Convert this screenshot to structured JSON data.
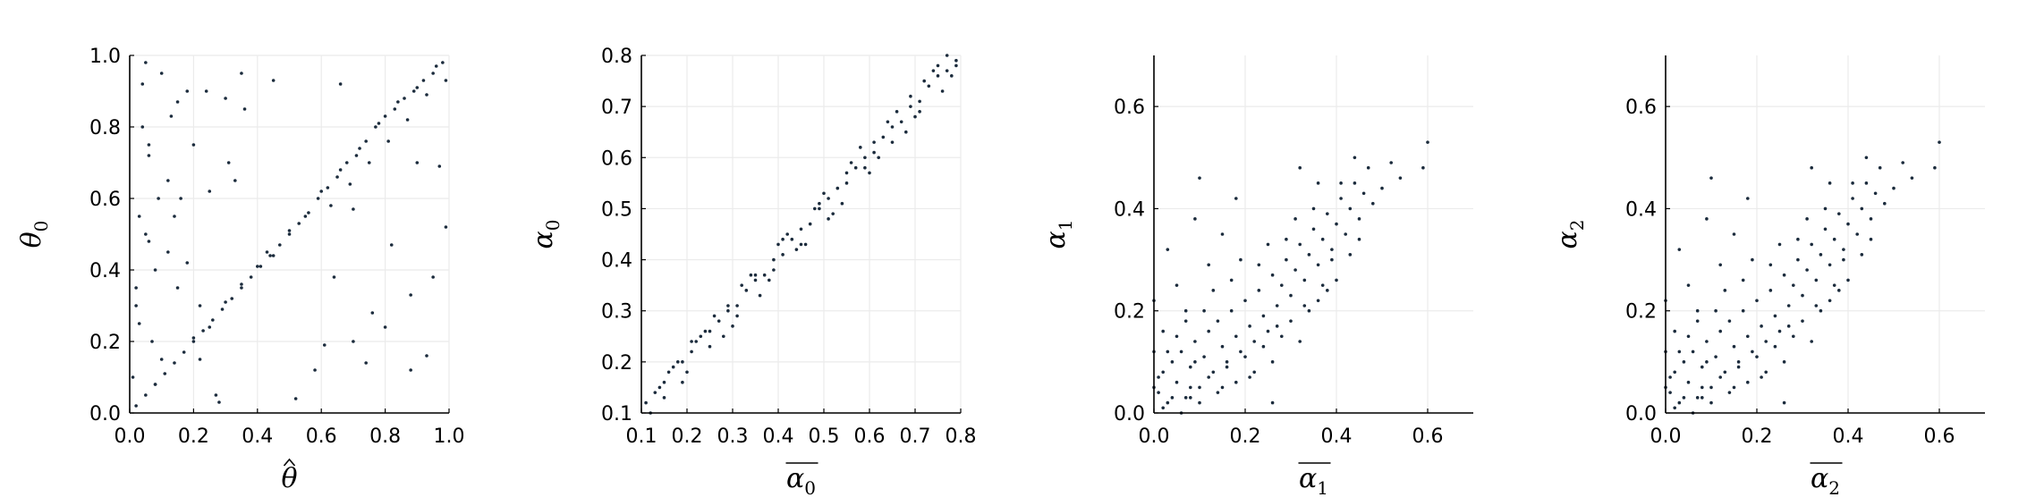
{
  "figure": {
    "grid": true,
    "point_color": "#1b2b3c",
    "grid_color": "#ebebeb",
    "axis_color": "#000000"
  },
  "chart_data": [
    {
      "type": "scatter",
      "id": "panel-1",
      "xlabel": "θ̂",
      "xlabel_main": "θ",
      "xlabel_accent": "hat",
      "xlabel_sub": "",
      "ylabel": "θ0",
      "ylabel_main": "θ",
      "ylabel_sub": "0",
      "xlim": [
        0.0,
        1.0
      ],
      "ylim": [
        0.0,
        1.0
      ],
      "xticks": [
        "0.0",
        "0.2",
        "0.4",
        "0.6",
        "0.8",
        "1.0"
      ],
      "yticks": [
        "0.0",
        "0.2",
        "0.4",
        "0.6",
        "0.8",
        "1.0"
      ],
      "xtick_values": [
        0.0,
        0.2,
        0.4,
        0.6,
        0.8,
        1.0
      ],
      "ytick_values": [
        0.0,
        0.2,
        0.4,
        0.6,
        0.8,
        1.0
      ],
      "series": [
        {
          "x": [
            0.02,
            0.05,
            0.08,
            0.11,
            0.14,
            0.17,
            0.2,
            0.23,
            0.26,
            0.29,
            0.32,
            0.35,
            0.38,
            0.41,
            0.44,
            0.47,
            0.5,
            0.53,
            0.56,
            0.59,
            0.62,
            0.65,
            0.68,
            0.71,
            0.74,
            0.77,
            0.8,
            0.83,
            0.86,
            0.89,
            0.92,
            0.95,
            0.98,
            0.2,
            0.25,
            0.3,
            0.35,
            0.4,
            0.45,
            0.5,
            0.55,
            0.6,
            0.63,
            0.66,
            0.69,
            0.72,
            0.75,
            0.78,
            0.81,
            0.84,
            0.87,
            0.9,
            0.93,
            0.96,
            0.99,
            0.01,
            0.02,
            0.03,
            0.04,
            0.06,
            0.07,
            0.09,
            0.12,
            0.15,
            0.18,
            0.22,
            0.27,
            0.31,
            0.36,
            0.58,
            0.64,
            0.7,
            0.76,
            0.82,
            0.88,
            0.93,
            0.97,
            0.1,
            0.05,
            0.15,
            0.03,
            0.08,
            0.12,
            0.2,
            0.25,
            0.35,
            0.05,
            0.1,
            0.06,
            0.18,
            0.22,
            0.14,
            0.04,
            0.3,
            0.45,
            0.02,
            0.08,
            0.28,
            0.13,
            0.61,
            0.74,
            0.8,
            0.88,
            0.95,
            0.99,
            0.52,
            0.66,
            0.7,
            0.9,
            0.33,
            0.16,
            0.06,
            0.24,
            0.43
          ],
          "y": [
            0.02,
            0.05,
            0.08,
            0.11,
            0.14,
            0.17,
            0.2,
            0.23,
            0.26,
            0.29,
            0.32,
            0.35,
            0.38,
            0.41,
            0.44,
            0.47,
            0.5,
            0.53,
            0.56,
            0.6,
            0.63,
            0.66,
            0.7,
            0.72,
            0.76,
            0.8,
            0.83,
            0.85,
            0.88,
            0.9,
            0.93,
            0.95,
            0.98,
            0.21,
            0.24,
            0.31,
            0.36,
            0.41,
            0.44,
            0.51,
            0.55,
            0.62,
            0.58,
            0.68,
            0.64,
            0.74,
            0.7,
            0.81,
            0.76,
            0.87,
            0.82,
            0.91,
            0.89,
            0.97,
            0.93,
            0.1,
            0.3,
            0.55,
            0.8,
            0.75,
            0.2,
            0.6,
            0.45,
            0.35,
            0.9,
            0.15,
            0.05,
            0.7,
            0.85,
            0.12,
            0.38,
            0.2,
            0.28,
            0.47,
            0.33,
            0.16,
            0.69,
            0.95,
            0.98,
            0.87,
            0.25,
            0.4,
            0.65,
            0.75,
            0.62,
            0.95,
            0.5,
            0.15,
            0.72,
            0.42,
            0.3,
            0.55,
            0.92,
            0.88,
            0.93,
            0.35,
            0.08,
            0.03,
            0.83,
            0.19,
            0.14,
            0.24,
            0.12,
            0.38,
            0.52,
            0.04,
            0.92,
            0.57,
            0.7,
            0.65,
            0.6,
            0.48,
            0.9,
            0.45
          ]
        }
      ]
    },
    {
      "type": "scatter",
      "id": "panel-2",
      "xlabel": "α0 (overlined)",
      "xlabel_main": "α",
      "xlabel_sub": "0",
      "xlabel_accent": "bar",
      "ylabel": "α0",
      "ylabel_main": "α",
      "ylabel_sub": "0",
      "xlim": [
        0.1,
        0.8
      ],
      "ylim": [
        0.1,
        0.8
      ],
      "xticks": [
        "0.1",
        "0.2",
        "0.3",
        "0.4",
        "0.5",
        "0.6",
        "0.7",
        "0.8"
      ],
      "yticks": [
        "0.1",
        "0.2",
        "0.3",
        "0.4",
        "0.5",
        "0.6",
        "0.7",
        "0.8"
      ],
      "xtick_values": [
        0.1,
        0.2,
        0.3,
        0.4,
        0.5,
        0.6,
        0.7,
        0.8
      ],
      "ytick_values": [
        0.1,
        0.2,
        0.3,
        0.4,
        0.5,
        0.6,
        0.7,
        0.8
      ],
      "series": [
        {
          "x": [
            0.11,
            0.13,
            0.15,
            0.17,
            0.19,
            0.21,
            0.23,
            0.25,
            0.27,
            0.29,
            0.31,
            0.33,
            0.35,
            0.37,
            0.39,
            0.41,
            0.43,
            0.45,
            0.47,
            0.49,
            0.51,
            0.53,
            0.55,
            0.57,
            0.59,
            0.61,
            0.63,
            0.65,
            0.67,
            0.69,
            0.71,
            0.73,
            0.75,
            0.77,
            0.79,
            0.12,
            0.16,
            0.2,
            0.24,
            0.28,
            0.32,
            0.36,
            0.4,
            0.44,
            0.48,
            0.52,
            0.56,
            0.6,
            0.64,
            0.68,
            0.72,
            0.76,
            0.14,
            0.18,
            0.22,
            0.26,
            0.3,
            0.34,
            0.38,
            0.42,
            0.46,
            0.5,
            0.54,
            0.58,
            0.62,
            0.66,
            0.7,
            0.74,
            0.78,
            0.15,
            0.25,
            0.35,
            0.45,
            0.55,
            0.65,
            0.75,
            0.19,
            0.29,
            0.39,
            0.49,
            0.59,
            0.69,
            0.79,
            0.21,
            0.31,
            0.41,
            0.51,
            0.61,
            0.71,
            0.77
          ],
          "y": [
            0.12,
            0.14,
            0.16,
            0.19,
            0.2,
            0.22,
            0.25,
            0.26,
            0.28,
            0.3,
            0.31,
            0.34,
            0.36,
            0.37,
            0.4,
            0.41,
            0.44,
            0.46,
            0.47,
            0.5,
            0.52,
            0.54,
            0.55,
            0.58,
            0.6,
            0.61,
            0.64,
            0.66,
            0.67,
            0.7,
            0.71,
            0.74,
            0.76,
            0.77,
            0.79,
            0.1,
            0.18,
            0.18,
            0.26,
            0.25,
            0.35,
            0.33,
            0.43,
            0.42,
            0.5,
            0.49,
            0.59,
            0.57,
            0.67,
            0.65,
            0.75,
            0.73,
            0.15,
            0.2,
            0.24,
            0.29,
            0.27,
            0.37,
            0.36,
            0.45,
            0.43,
            0.53,
            0.51,
            0.62,
            0.6,
            0.69,
            0.68,
            0.77,
            0.76,
            0.13,
            0.23,
            0.37,
            0.43,
            0.57,
            0.63,
            0.78,
            0.16,
            0.31,
            0.38,
            0.51,
            0.58,
            0.72,
            0.78,
            0.24,
            0.29,
            0.44,
            0.48,
            0.63,
            0.69,
            0.8
          ]
        }
      ]
    },
    {
      "type": "scatter",
      "id": "panel-3",
      "xlabel": "α1 (overlined)",
      "xlabel_main": "α",
      "xlabel_sub": "1",
      "xlabel_accent": "bar",
      "ylabel": "α1",
      "ylabel_main": "α",
      "ylabel_sub": "1",
      "xlim": [
        0.0,
        0.7
      ],
      "ylim": [
        0.0,
        0.7
      ],
      "xticks": [
        "0.0",
        "0.2",
        "0.4",
        "0.6"
      ],
      "yticks": [
        "0.0",
        "0.2",
        "0.4",
        "0.6"
      ],
      "xtick_values": [
        0.0,
        0.2,
        0.4,
        0.6
      ],
      "ytick_values": [
        0.0,
        0.2,
        0.4,
        0.6
      ],
      "series": [
        {
          "x": [
            0.01,
            0.02,
            0.03,
            0.04,
            0.05,
            0.06,
            0.07,
            0.08,
            0.09,
            0.1,
            0.11,
            0.12,
            0.13,
            0.14,
            0.15,
            0.16,
            0.17,
            0.18,
            0.19,
            0.2,
            0.21,
            0.22,
            0.23,
            0.24,
            0.25,
            0.26,
            0.27,
            0.28,
            0.29,
            0.3,
            0.31,
            0.32,
            0.33,
            0.34,
            0.35,
            0.36,
            0.37,
            0.38,
            0.39,
            0.4,
            0.41,
            0.42,
            0.43,
            0.44,
            0.45,
            0.46,
            0.47,
            0.48,
            0.5,
            0.52,
            0.54,
            0.59,
            0.6,
            0.02,
            0.04,
            0.06,
            0.08,
            0.1,
            0.12,
            0.14,
            0.16,
            0.18,
            0.2,
            0.22,
            0.24,
            0.26,
            0.28,
            0.3,
            0.32,
            0.34,
            0.36,
            0.38,
            0.4,
            0.03,
            0.05,
            0.07,
            0.09,
            0.11,
            0.13,
            0.15,
            0.17,
            0.19,
            0.21,
            0.23,
            0.25,
            0.27,
            0.29,
            0.31,
            0.33,
            0.35,
            0.37,
            0.39,
            0.41,
            0.43,
            0.45,
            0.0,
            0.0,
            0.0,
            0.01,
            0.02,
            0.03,
            0.05,
            0.07,
            0.09,
            0.12,
            0.15,
            0.18,
            0.1,
            0.08,
            0.26,
            0.36,
            0.44,
            0.32
          ],
          "y": [
            0.04,
            0.08,
            0.02,
            0.1,
            0.06,
            0.12,
            0.03,
            0.09,
            0.14,
            0.05,
            0.11,
            0.16,
            0.08,
            0.18,
            0.13,
            0.1,
            0.2,
            0.15,
            0.12,
            0.22,
            0.17,
            0.14,
            0.24,
            0.19,
            0.16,
            0.27,
            0.21,
            0.25,
            0.3,
            0.23,
            0.28,
            0.33,
            0.26,
            0.31,
            0.36,
            0.29,
            0.34,
            0.39,
            0.32,
            0.37,
            0.42,
            0.35,
            0.4,
            0.45,
            0.38,
            0.43,
            0.48,
            0.41,
            0.44,
            0.49,
            0.46,
            0.48,
            0.53,
            0.01,
            0.03,
            0.0,
            0.05,
            0.02,
            0.07,
            0.04,
            0.09,
            0.06,
            0.11,
            0.08,
            0.13,
            0.1,
            0.15,
            0.18,
            0.14,
            0.2,
            0.22,
            0.24,
            0.26,
            0.12,
            0.15,
            0.18,
            0.1,
            0.2,
            0.24,
            0.05,
            0.26,
            0.3,
            0.07,
            0.29,
            0.33,
            0.17,
            0.34,
            0.38,
            0.21,
            0.4,
            0.25,
            0.3,
            0.45,
            0.31,
            0.34,
            0.05,
            0.12,
            0.22,
            0.07,
            0.16,
            0.32,
            0.25,
            0.2,
            0.38,
            0.29,
            0.35,
            0.42,
            0.46,
            0.03,
            0.02,
            0.45,
            0.5,
            0.48
          ],
          "_note": ""
        }
      ]
    },
    {
      "type": "scatter",
      "id": "panel-4",
      "xlabel": "α2 (overlined)",
      "xlabel_main": "α",
      "xlabel_sub": "2",
      "xlabel_accent": "bar",
      "ylabel": "α2",
      "ylabel_main": "α",
      "ylabel_sub": "2",
      "xlim": [
        0.0,
        0.7
      ],
      "ylim": [
        0.0,
        0.7
      ],
      "xticks": [
        "0.0",
        "0.2",
        "0.4",
        "0.6"
      ],
      "yticks": [
        "0.0",
        "0.2",
        "0.4",
        "0.6"
      ],
      "xtick_values": [
        0.0,
        0.2,
        0.4,
        0.6
      ],
      "ytick_values": [
        0.0,
        0.2,
        0.4,
        0.6
      ],
      "series": [
        {
          "x": [
            0.01,
            0.02,
            0.03,
            0.04,
            0.05,
            0.06,
            0.07,
            0.08,
            0.09,
            0.1,
            0.11,
            0.12,
            0.13,
            0.14,
            0.15,
            0.16,
            0.17,
            0.18,
            0.19,
            0.2,
            0.21,
            0.22,
            0.23,
            0.24,
            0.25,
            0.26,
            0.27,
            0.28,
            0.29,
            0.3,
            0.31,
            0.32,
            0.33,
            0.34,
            0.35,
            0.36,
            0.37,
            0.38,
            0.39,
            0.4,
            0.41,
            0.42,
            0.43,
            0.44,
            0.45,
            0.46,
            0.47,
            0.48,
            0.5,
            0.52,
            0.54,
            0.59,
            0.6,
            0.02,
            0.04,
            0.06,
            0.08,
            0.1,
            0.12,
            0.14,
            0.16,
            0.18,
            0.2,
            0.22,
            0.24,
            0.26,
            0.28,
            0.3,
            0.32,
            0.34,
            0.36,
            0.38,
            0.4,
            0.03,
            0.05,
            0.07,
            0.09,
            0.11,
            0.13,
            0.15,
            0.17,
            0.19,
            0.21,
            0.23,
            0.25,
            0.27,
            0.29,
            0.31,
            0.33,
            0.35,
            0.37,
            0.39,
            0.41,
            0.43,
            0.45,
            0.0,
            0.0,
            0.0,
            0.01,
            0.02,
            0.03,
            0.05,
            0.07,
            0.09,
            0.12,
            0.15,
            0.18,
            0.1,
            0.08,
            0.26,
            0.36,
            0.44,
            0.32
          ],
          "y": [
            0.04,
            0.08,
            0.02,
            0.1,
            0.06,
            0.12,
            0.03,
            0.09,
            0.14,
            0.05,
            0.11,
            0.16,
            0.08,
            0.18,
            0.13,
            0.1,
            0.2,
            0.15,
            0.12,
            0.22,
            0.17,
            0.14,
            0.24,
            0.19,
            0.16,
            0.27,
            0.21,
            0.25,
            0.3,
            0.23,
            0.28,
            0.33,
            0.26,
            0.31,
            0.36,
            0.29,
            0.34,
            0.39,
            0.32,
            0.37,
            0.42,
            0.35,
            0.4,
            0.45,
            0.38,
            0.43,
            0.48,
            0.41,
            0.44,
            0.49,
            0.46,
            0.48,
            0.53,
            0.01,
            0.03,
            0.0,
            0.05,
            0.02,
            0.07,
            0.04,
            0.09,
            0.06,
            0.11,
            0.08,
            0.13,
            0.1,
            0.15,
            0.18,
            0.14,
            0.2,
            0.22,
            0.24,
            0.26,
            0.12,
            0.15,
            0.18,
            0.1,
            0.2,
            0.24,
            0.05,
            0.26,
            0.3,
            0.07,
            0.29,
            0.33,
            0.17,
            0.34,
            0.38,
            0.21,
            0.4,
            0.25,
            0.3,
            0.45,
            0.31,
            0.34,
            0.05,
            0.12,
            0.22,
            0.07,
            0.16,
            0.32,
            0.25,
            0.2,
            0.38,
            0.29,
            0.35,
            0.42,
            0.46,
            0.03,
            0.02,
            0.45,
            0.5,
            0.48
          ]
        }
      ]
    }
  ]
}
